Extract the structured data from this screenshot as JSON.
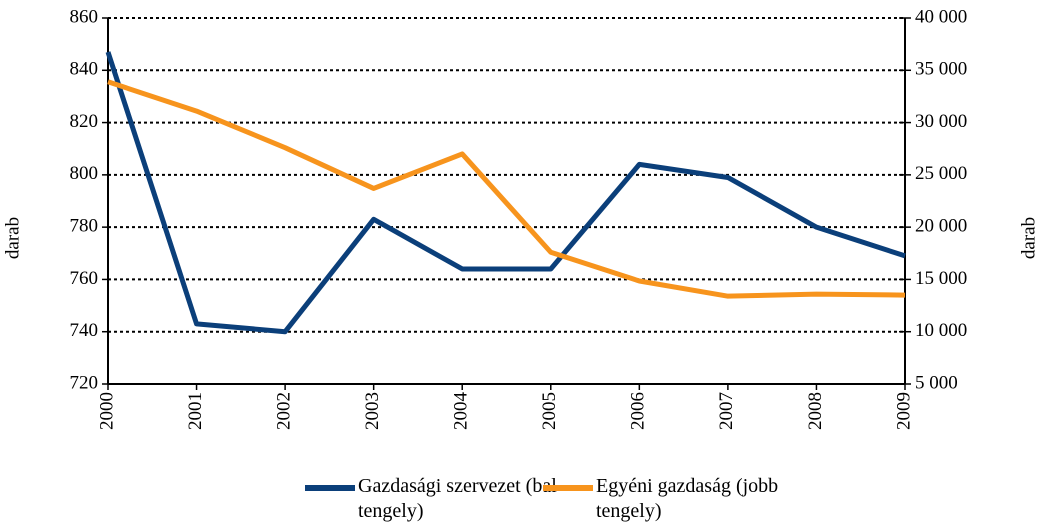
{
  "chart_data": {
    "type": "line",
    "categories": [
      "2000",
      "2001",
      "2002",
      "2003",
      "2004",
      "2005",
      "2006",
      "2007",
      "2008",
      "2009"
    ],
    "series": [
      {
        "name": "Gazdasági szervezet (bal tengely)",
        "color": "#0b3f7a",
        "values": [
          847,
          743,
          740,
          783,
          764,
          764,
          804,
          799,
          780,
          769
        ]
      },
      {
        "name": "Egyéni gazdaság (jobb tengely)",
        "color": "#f7941d",
        "axis": "y2",
        "values": [
          33900,
          31100,
          27600,
          23700,
          27000,
          17600,
          14850,
          13400,
          13600,
          13500
        ]
      }
    ],
    "ylabel": "darab",
    "y2label": "darab",
    "ylim": [
      720,
      860
    ],
    "yticks": [
      720,
      740,
      760,
      780,
      800,
      820,
      840,
      860
    ],
    "y2lim": [
      5000,
      40000
    ],
    "y2ticks": [
      {
        "value": 5000,
        "label": "5 000"
      },
      {
        "value": 10000,
        "label": "10 000"
      },
      {
        "value": 15000,
        "label": "15 000"
      },
      {
        "value": 20000,
        "label": "20 000"
      },
      {
        "value": 25000,
        "label": "25 000"
      },
      {
        "value": 30000,
        "label": "30 000"
      },
      {
        "value": 35000,
        "label": "35 000"
      },
      {
        "value": 40000,
        "label": "40 000"
      }
    ],
    "grid": true
  }
}
